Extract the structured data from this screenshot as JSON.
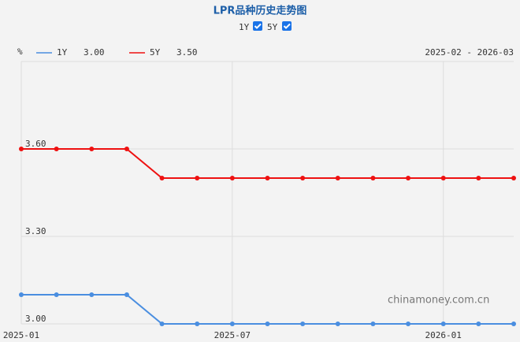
{
  "chart_data": {
    "type": "line",
    "title": "LPR品种历史走势图",
    "toggles": [
      "1Y",
      "5Y"
    ],
    "y_unit": "%",
    "range_label": "2025-02 - 2026-03",
    "watermark": "chinamoney.com.cn",
    "x": [
      "2025-01",
      "2025-02",
      "2025-03",
      "2025-04",
      "2025-05",
      "2025-06",
      "2025-07",
      "2025-08",
      "2025-09",
      "2025-10",
      "2025-11",
      "2025-12",
      "2026-01",
      "2026-02",
      "2026-03"
    ],
    "xticks": [
      "2025-01",
      "2025-07",
      "2026-01"
    ],
    "series": [
      {
        "name": "1Y",
        "color": "#4a8ee0",
        "legend_value": "3.00",
        "values": [
          3.1,
          3.1,
          3.1,
          3.1,
          3.0,
          3.0,
          3.0,
          3.0,
          3.0,
          3.0,
          3.0,
          3.0,
          3.0,
          3.0,
          3.0
        ]
      },
      {
        "name": "5Y",
        "color": "#ee1111",
        "legend_value": "3.50",
        "values": [
          3.6,
          3.6,
          3.6,
          3.6,
          3.5,
          3.5,
          3.5,
          3.5,
          3.5,
          3.5,
          3.5,
          3.5,
          3.5,
          3.5,
          3.5
        ]
      }
    ],
    "ylim": [
      3.0,
      3.9
    ],
    "yticks": [
      {
        "value": 3.0,
        "label": "3.00"
      },
      {
        "value": 3.3,
        "label": "3.30"
      },
      {
        "value": 3.6,
        "label": "3.60"
      }
    ],
    "grid": true
  }
}
